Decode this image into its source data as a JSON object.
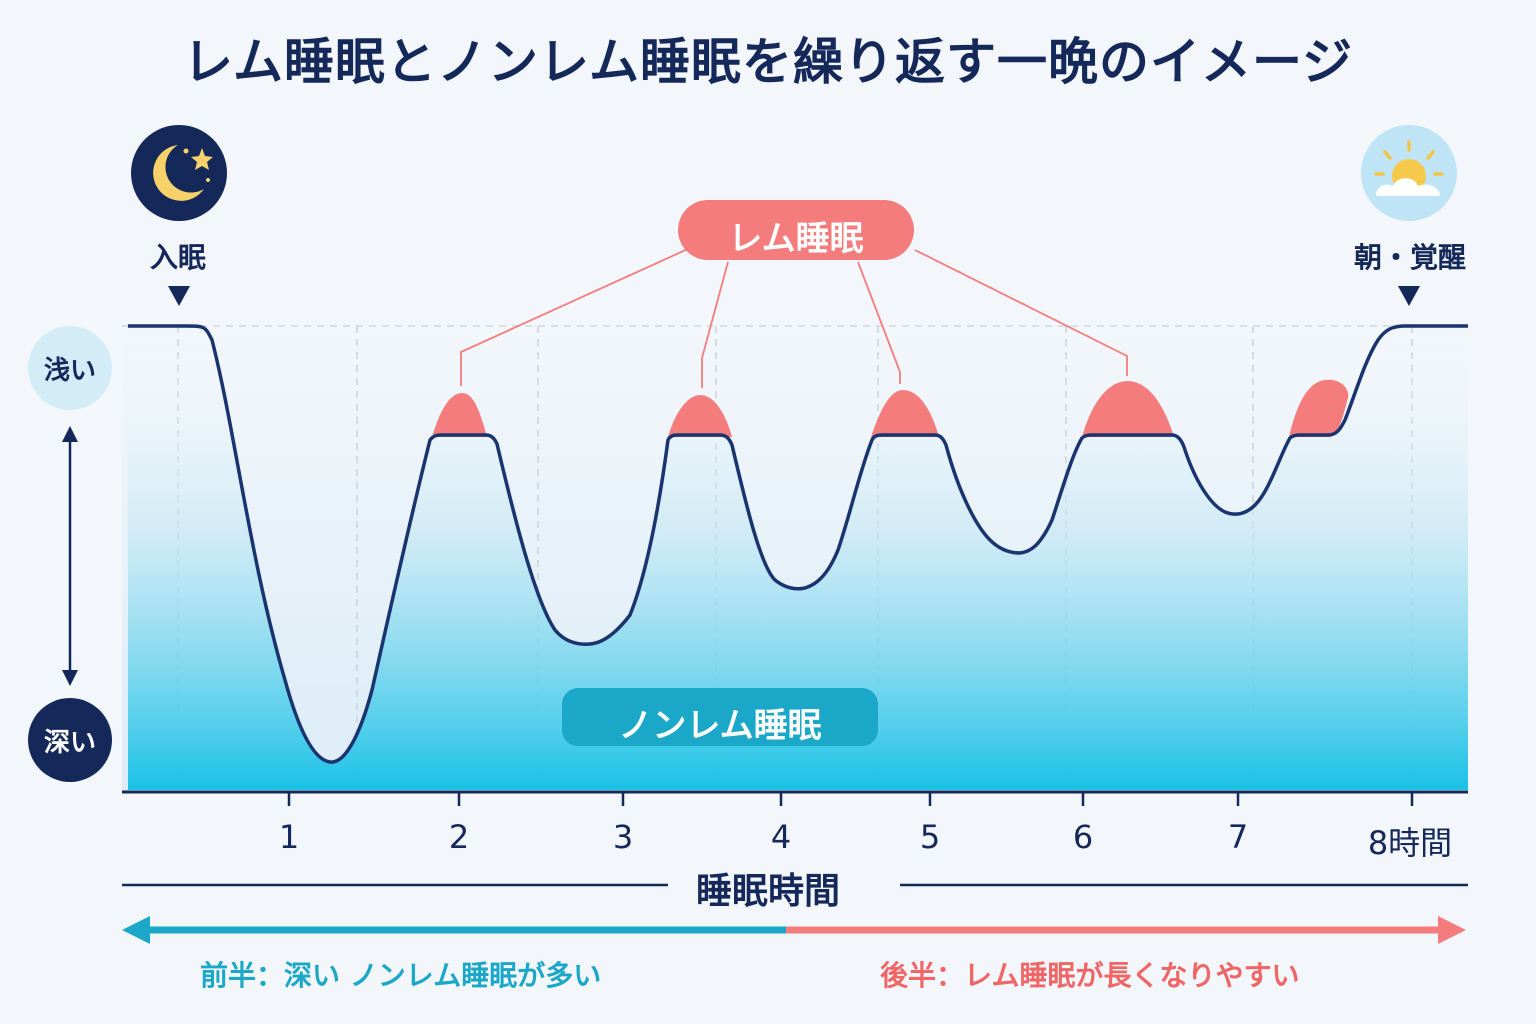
{
  "title": "レム睡眠とノンレム睡眠を繰り返す一晩のイメージ",
  "markers": {
    "sleep_onset": "入眠",
    "wake": "朝・覚醒"
  },
  "icons": {
    "start": "moon-stars-icon",
    "end": "sun-cloud-icon"
  },
  "depth_axis": {
    "shallow": "浅い",
    "deep": "深い"
  },
  "labels": {
    "rem": "レム睡眠",
    "nonrem": "ノンレム睡眠"
  },
  "x_axis": {
    "ticks": [
      "1",
      "2",
      "3",
      "4",
      "5",
      "6",
      "7",
      "8時間"
    ],
    "title": "睡眠時間"
  },
  "bottom": {
    "first_half": "前半：深い ノンレム睡眠が多い",
    "second_half": "後半：レム睡眠が長くなりやすい"
  },
  "colors": {
    "navy": "#15285a",
    "rem": "#f47c7c",
    "nonrem": "#1ba8c8"
  }
}
